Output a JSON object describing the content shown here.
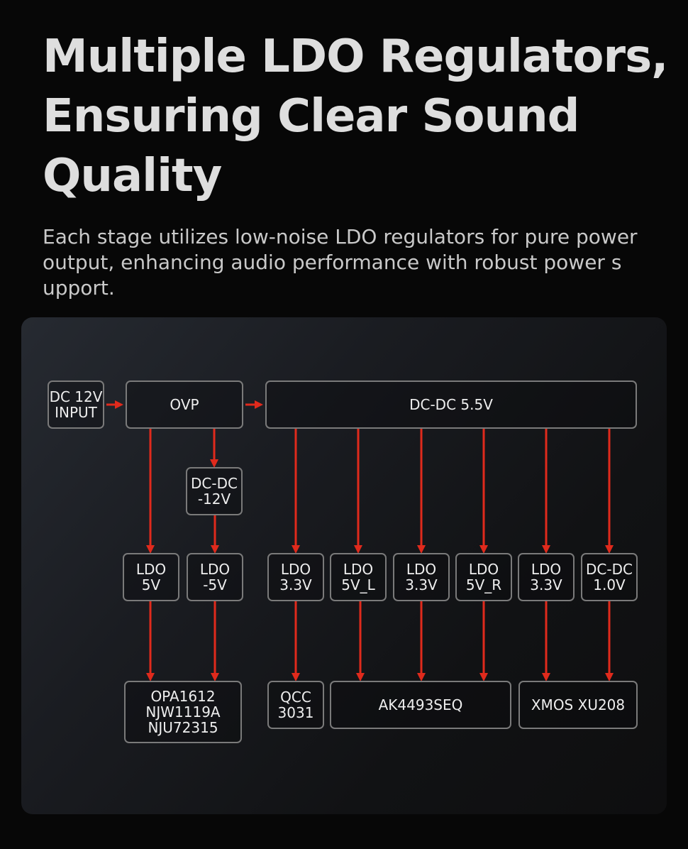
{
  "title_lines": [
    "Multiple LDO Regulators,",
    "Ensuring Clear Sound",
    "Quality"
  ],
  "subtitle_lines": [
    "Each stage utilizes low-noise LDO regulators for pure power",
    "output, enhancing audio performance with robust power s",
    "upport."
  ],
  "diagram": {
    "accent_color": "#e02a1c",
    "nodes": [
      {
        "id": "dc_input",
        "lines": [
          "DC 12V",
          "INPUT"
        ]
      },
      {
        "id": "ovp",
        "lines": [
          "OVP"
        ]
      },
      {
        "id": "dcdc_55",
        "lines": [
          "DC-DC 5.5V"
        ]
      },
      {
        "id": "dcdc_neg12",
        "lines": [
          "DC-DC",
          "-12V"
        ]
      },
      {
        "id": "ldo_5v",
        "lines": [
          "LDO",
          "5V"
        ]
      },
      {
        "id": "ldo_neg5v",
        "lines": [
          "LDO",
          "-5V"
        ]
      },
      {
        "id": "ldo_33_a",
        "lines": [
          "LDO",
          "3.3V"
        ]
      },
      {
        "id": "ldo_5v_l",
        "lines": [
          "LDO",
          "5V_L"
        ]
      },
      {
        "id": "ldo_33_b",
        "lines": [
          "LDO",
          "3.3V"
        ]
      },
      {
        "id": "ldo_5v_r",
        "lines": [
          "LDO",
          "5V_R"
        ]
      },
      {
        "id": "ldo_33_c",
        "lines": [
          "LDO",
          "3.3V"
        ]
      },
      {
        "id": "dcdc_10",
        "lines": [
          "DC-DC",
          "1.0V"
        ]
      },
      {
        "id": "opamps",
        "lines": [
          "OPA1612",
          "NJW1119A",
          "NJU72315"
        ]
      },
      {
        "id": "qcc",
        "lines": [
          "QCC",
          "3031"
        ]
      },
      {
        "id": "ak4493",
        "lines": [
          "AK4493SEQ"
        ]
      },
      {
        "id": "xmos",
        "lines": [
          "XMOS XU208"
        ]
      }
    ],
    "edges": [
      [
        "dc_input",
        "ovp"
      ],
      [
        "ovp",
        "dcdc_55"
      ],
      [
        "ovp",
        "dcdc_neg12"
      ],
      [
        "ovp",
        "ldo_5v"
      ],
      [
        "dcdc_neg12",
        "ldo_neg5v"
      ],
      [
        "dcdc_55",
        "ldo_33_a"
      ],
      [
        "dcdc_55",
        "ldo_5v_l"
      ],
      [
        "dcdc_55",
        "ldo_33_b"
      ],
      [
        "dcdc_55",
        "ldo_5v_r"
      ],
      [
        "dcdc_55",
        "ldo_33_c"
      ],
      [
        "dcdc_55",
        "dcdc_10"
      ],
      [
        "ldo_5v",
        "opamps"
      ],
      [
        "ldo_neg5v",
        "opamps"
      ],
      [
        "ldo_33_a",
        "qcc"
      ],
      [
        "ldo_5v_l",
        "ak4493"
      ],
      [
        "ldo_33_b",
        "ak4493"
      ],
      [
        "ldo_5v_r",
        "ak4493"
      ],
      [
        "ldo_33_c",
        "xmos"
      ],
      [
        "dcdc_10",
        "xmos"
      ]
    ]
  }
}
